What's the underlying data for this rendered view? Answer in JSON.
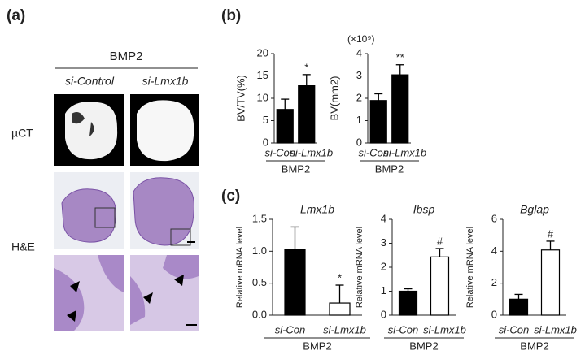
{
  "panel_labels": [
    "(a)",
    "(b)",
    "(c)"
  ],
  "panel_a": {
    "treatment": "BMP2",
    "groups": [
      "si-Control",
      "si-Lmx1b"
    ],
    "rows": [
      "µCT",
      "H&E"
    ]
  },
  "chart_data": [
    {
      "type": "bar",
      "ylabel": "BV/TV(%)",
      "categories": [
        "si-Con",
        "si-Lmx1b"
      ],
      "group_label": "BMP2",
      "values": [
        7.5,
        12.8
      ],
      "errors": [
        2.3,
        2.5
      ],
      "colors": [
        "#000000",
        "#000000"
      ],
      "significance": [
        null,
        "*"
      ],
      "ylim": [
        0,
        20
      ],
      "yticks": [
        0,
        5,
        10,
        15,
        20
      ]
    },
    {
      "type": "bar",
      "ylabel": "BV(mm2)",
      "axis_multiplier": "(×10⁹)",
      "categories": [
        "si-Con",
        "si-Lmx1b"
      ],
      "group_label": "BMP2",
      "values": [
        1.9,
        3.05
      ],
      "errors": [
        0.3,
        0.45
      ],
      "colors": [
        "#000000",
        "#000000"
      ],
      "significance": [
        null,
        "**"
      ],
      "ylim": [
        0,
        4
      ],
      "yticks": [
        0,
        1,
        2,
        3,
        4
      ]
    },
    {
      "type": "bar",
      "title": "Lmx1b",
      "ylabel": "Relative mRNA level",
      "categories": [
        "si-Con",
        "si-Lmx1b"
      ],
      "group_label": "BMP2",
      "values": [
        1.03,
        0.19
      ],
      "errors": [
        0.35,
        0.28
      ],
      "colors": [
        "#000000",
        "#ffffff"
      ],
      "significance": [
        null,
        "*"
      ],
      "ylim": [
        0,
        1.5
      ],
      "yticks": [
        {
          "value": 0,
          "label": "0.0"
        },
        0.5,
        {
          "value": 1,
          "label": "1.0"
        },
        1.5
      ]
    },
    {
      "type": "bar",
      "title": "Ibsp",
      "ylabel": "Relative mRNA level",
      "categories": [
        "si-Con",
        "si-Lmx1b"
      ],
      "group_label": "BMP2",
      "values": [
        1.0,
        2.43
      ],
      "errors": [
        0.1,
        0.35
      ],
      "colors": [
        "#000000",
        "#ffffff"
      ],
      "significance": [
        null,
        "#"
      ],
      "ylim": [
        0,
        4
      ],
      "yticks": [
        0,
        1,
        2,
        3,
        4
      ]
    },
    {
      "type": "bar",
      "title": "Bglap",
      "ylabel": "Relative mRNA level",
      "categories": [
        "si-Con",
        "si-Lmx1b"
      ],
      "group_label": "BMP2",
      "values": [
        1.0,
        4.08
      ],
      "errors": [
        0.3,
        0.55
      ],
      "colors": [
        "#000000",
        "#ffffff"
      ],
      "significance": [
        null,
        "#"
      ],
      "ylim": [
        0,
        6
      ],
      "yticks": [
        0,
        2,
        4,
        6
      ]
    }
  ]
}
